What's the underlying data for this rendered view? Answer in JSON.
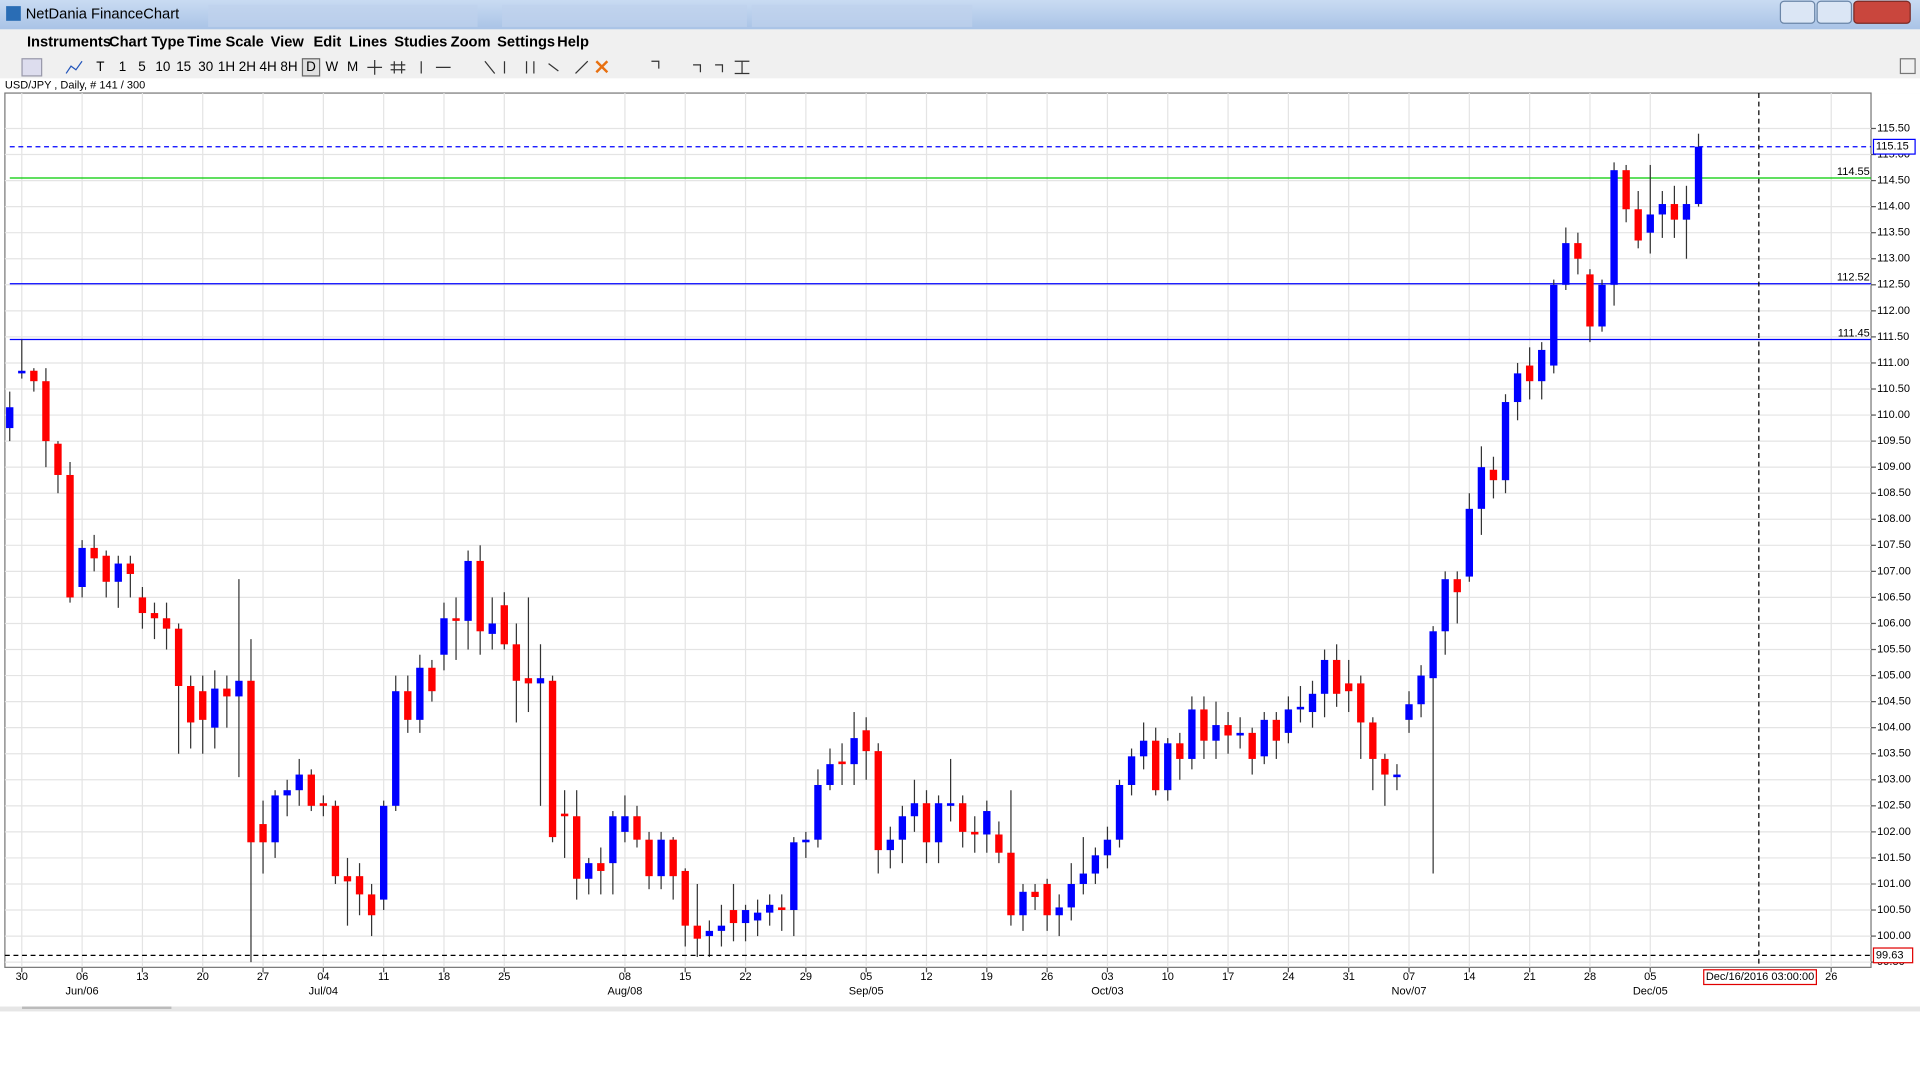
{
  "window": {
    "title": "NetDania FinanceChart"
  },
  "menu": [
    "Instruments",
    "Chart Type",
    "Time Scale",
    "View",
    "Edit",
    "Lines",
    "Studies",
    "Zoom",
    "Settings",
    "Help"
  ],
  "toolbar": {
    "timescales": [
      "T",
      "1",
      "5",
      "10",
      "15",
      "30",
      "1H",
      "2H",
      "4H",
      "8H",
      "D",
      "W",
      "M"
    ],
    "active": "D"
  },
  "chart_data": {
    "type": "candlestick",
    "title": "USD/JPY , Daily, # 141 / 300",
    "up_color": "#0000ff",
    "down_color": "#ff0000",
    "grid": true,
    "open": [
      109.75,
      110.8,
      110.85,
      110.65,
      109.45,
      108.85,
      106.7,
      107.45,
      107.3,
      106.8,
      107.15,
      106.5,
      106.2,
      106.1,
      105.9,
      104.8,
      104.7,
      104.0,
      104.75,
      104.6,
      104.9,
      102.15,
      101.8,
      102.7,
      102.8,
      103.1,
      102.55,
      102.5,
      101.15,
      101.15,
      100.8,
      100.7,
      102.5,
      104.7,
      104.15,
      105.15,
      105.4,
      106.1,
      106.05,
      107.2,
      105.8,
      106.35,
      105.6,
      104.95,
      104.85,
      104.9,
      102.35,
      102.3,
      101.1,
      101.4,
      101.4,
      102.0,
      102.3,
      101.85,
      101.15,
      101.85,
      101.25,
      100.2,
      100.0,
      100.1,
      100.5,
      100.25,
      100.3,
      100.45,
      100.55,
      100.5,
      101.8,
      101.85,
      102.9,
      103.35,
      103.3,
      103.95,
      103.55,
      101.65,
      101.85,
      102.3,
      102.55,
      101.8,
      102.5,
      102.55,
      102.0,
      101.95,
      101.95,
      101.6,
      100.4,
      100.85,
      101.0,
      100.4,
      100.55,
      101.0,
      101.2,
      101.55,
      101.85,
      102.9,
      103.45,
      103.75,
      102.8,
      103.7,
      103.4,
      104.35,
      103.75,
      104.05,
      103.85,
      103.9,
      103.45,
      104.15,
      103.9,
      104.35,
      104.3,
      104.65,
      105.3,
      104.85,
      104.85,
      104.1,
      103.4,
      103.05,
      104.15,
      104.45,
      104.95,
      105.85,
      106.85,
      106.9,
      108.2,
      108.95,
      108.75,
      110.25,
      110.95,
      110.65,
      110.95,
      112.5,
      113.3,
      112.7,
      111.7,
      112.5,
      114.7,
      113.95,
      113.5,
      113.85,
      114.05,
      113.75,
      114.05
    ],
    "high": [
      110.45,
      111.45,
      110.9,
      110.9,
      109.5,
      109.1,
      107.6,
      107.7,
      107.4,
      107.3,
      107.3,
      106.7,
      106.4,
      106.4,
      106.0,
      105.0,
      105.0,
      105.1,
      105.0,
      106.85,
      105.7,
      102.6,
      102.8,
      103.0,
      103.4,
      103.2,
      102.7,
      102.6,
      101.5,
      101.4,
      101.0,
      102.6,
      105.0,
      105.0,
      105.4,
      105.3,
      106.4,
      106.5,
      107.4,
      107.5,
      106.5,
      106.6,
      106.0,
      106.5,
      105.6,
      105.0,
      102.8,
      102.8,
      101.5,
      101.7,
      102.4,
      102.7,
      102.5,
      102.0,
      102.0,
      101.9,
      101.3,
      101.0,
      100.3,
      100.6,
      101.0,
      100.6,
      100.7,
      100.8,
      100.8,
      101.9,
      102.0,
      103.2,
      103.6,
      103.7,
      104.3,
      104.2,
      103.7,
      102.1,
      102.5,
      103.0,
      102.8,
      102.7,
      103.4,
      102.7,
      102.3,
      102.6,
      102.2,
      102.8,
      101.0,
      101.0,
      101.1,
      100.8,
      101.4,
      101.9,
      101.7,
      102.1,
      103.0,
      103.6,
      104.1,
      104.0,
      103.8,
      103.9,
      104.6,
      104.6,
      104.5,
      104.3,
      104.2,
      104.0,
      104.3,
      104.3,
      104.6,
      104.8,
      104.9,
      105.5,
      105.6,
      105.3,
      105.0,
      104.2,
      103.5,
      103.3,
      104.7,
      105.2,
      105.95,
      107.0,
      107.0,
      108.5,
      109.4,
      109.2,
      110.4,
      111.0,
      111.3,
      111.4,
      112.6,
      113.6,
      113.5,
      112.8,
      112.6,
      114.85,
      114.8,
      114.3,
      114.8,
      114.3,
      114.4,
      114.4,
      115.4
    ],
    "low": [
      109.5,
      110.7,
      110.45,
      109.0,
      108.5,
      106.4,
      106.5,
      107.0,
      106.5,
      106.3,
      106.5,
      105.9,
      105.7,
      105.5,
      103.5,
      103.6,
      103.5,
      103.6,
      104.0,
      103.05,
      99.5,
      101.2,
      101.5,
      102.3,
      102.5,
      102.4,
      102.3,
      101.0,
      100.2,
      100.4,
      100.0,
      100.5,
      102.4,
      103.9,
      103.9,
      104.5,
      105.1,
      105.3,
      105.5,
      105.4,
      105.5,
      105.5,
      104.1,
      104.3,
      102.5,
      101.8,
      101.5,
      100.7,
      100.8,
      100.8,
      100.8,
      101.8,
      101.7,
      100.9,
      100.9,
      100.7,
      99.8,
      99.6,
      99.6,
      99.8,
      99.9,
      99.9,
      100.0,
      100.2,
      100.1,
      100.0,
      101.5,
      101.7,
      102.8,
      102.9,
      102.9,
      103.0,
      101.2,
      101.3,
      101.4,
      102.0,
      101.4,
      101.4,
      102.2,
      101.7,
      101.6,
      101.6,
      101.4,
      100.2,
      100.1,
      100.5,
      100.1,
      100.0,
      100.3,
      100.8,
      101.0,
      101.3,
      101.7,
      102.7,
      103.2,
      102.7,
      102.6,
      103.0,
      103.2,
      103.4,
      103.4,
      103.5,
      103.6,
      103.1,
      103.3,
      103.4,
      103.7,
      104.1,
      104.0,
      104.2,
      104.4,
      104.3,
      103.4,
      102.8,
      102.5,
      102.8,
      103.9,
      104.2,
      101.2,
      105.4,
      106.0,
      106.8,
      107.7,
      108.4,
      108.5,
      109.9,
      110.3,
      110.3,
      110.8,
      112.4,
      112.7,
      111.4,
      111.6,
      112.1,
      113.7,
      113.2,
      113.1,
      113.4,
      113.4,
      113.0,
      114.0
    ],
    "close": [
      110.15,
      110.85,
      110.65,
      109.5,
      108.85,
      106.5,
      107.45,
      107.25,
      106.8,
      107.15,
      106.95,
      106.2,
      106.1,
      105.9,
      104.8,
      104.1,
      104.15,
      104.75,
      104.6,
      104.9,
      101.8,
      101.8,
      102.7,
      102.8,
      103.1,
      102.5,
      102.5,
      101.15,
      101.05,
      100.8,
      100.4,
      102.5,
      104.7,
      104.15,
      105.15,
      104.7,
      106.1,
      106.05,
      107.2,
      105.85,
      106.0,
      105.6,
      104.9,
      104.85,
      104.95,
      101.9,
      102.3,
      101.1,
      101.4,
      101.25,
      102.3,
      102.3,
      101.85,
      101.15,
      101.85,
      101.15,
      100.2,
      99.95,
      100.1,
      100.2,
      100.25,
      100.5,
      100.45,
      100.6,
      100.5,
      101.8,
      101.85,
      102.9,
      103.3,
      103.3,
      103.8,
      103.55,
      101.65,
      101.85,
      102.3,
      102.55,
      101.8,
      102.55,
      102.55,
      102.0,
      101.95,
      102.4,
      101.6,
      100.4,
      100.85,
      100.75,
      100.4,
      100.55,
      101.0,
      101.2,
      101.55,
      101.85,
      102.9,
      103.45,
      103.75,
      102.8,
      103.7,
      103.4,
      104.35,
      103.75,
      104.05,
      103.85,
      103.9,
      103.4,
      104.15,
      103.75,
      104.35,
      104.4,
      104.65,
      105.3,
      104.65,
      104.7,
      104.1,
      103.4,
      103.1,
      103.1,
      104.45,
      105.0,
      105.85,
      106.85,
      106.6,
      108.2,
      109.0,
      108.75,
      110.25,
      110.8,
      110.65,
      111.25,
      112.5,
      113.3,
      113.0,
      111.7,
      112.5,
      114.7,
      113.95,
      113.35,
      113.85,
      114.05,
      113.75,
      114.05,
      115.15
    ],
    "xlim": [
      -0.4,
      154.3
    ],
    "xticks": [
      {
        "value": 1,
        "label": "30"
      },
      {
        "value": 6,
        "label": "06"
      },
      {
        "value": 11,
        "label": "13"
      },
      {
        "value": 16,
        "label": "20"
      },
      {
        "value": 21,
        "label": "27"
      },
      {
        "value": 26,
        "label": "04"
      },
      {
        "value": 31,
        "label": "11"
      },
      {
        "value": 36,
        "label": "18"
      },
      {
        "value": 41,
        "label": "25"
      },
      {
        "value": 51,
        "label": "08"
      },
      {
        "value": 56,
        "label": "15"
      },
      {
        "value": 61,
        "label": "22"
      },
      {
        "value": 66,
        "label": "29"
      },
      {
        "value": 71,
        "label": "05"
      },
      {
        "value": 76,
        "label": "12"
      },
      {
        "value": 81,
        "label": "19"
      },
      {
        "value": 86,
        "label": "26"
      },
      {
        "value": 91,
        "label": "03"
      },
      {
        "value": 96,
        "label": "10"
      },
      {
        "value": 101,
        "label": "17"
      },
      {
        "value": 106,
        "label": "24"
      },
      {
        "value": 111,
        "label": "31"
      },
      {
        "value": 116,
        "label": "07"
      },
      {
        "value": 121,
        "label": "14"
      },
      {
        "value": 126,
        "label": "21"
      },
      {
        "value": 131,
        "label": "28"
      },
      {
        "value": 136,
        "label": "05"
      },
      {
        "value": 151,
        "label": "26"
      }
    ],
    "xticks_month": [
      {
        "value": 6,
        "label": "Jun/06"
      },
      {
        "value": 26,
        "label": "Jul/04"
      },
      {
        "value": 51,
        "label": "Aug/08"
      },
      {
        "value": 71,
        "label": "Sep/05"
      },
      {
        "value": 91,
        "label": "Oct/03"
      },
      {
        "value": 116,
        "label": "Nov/07"
      },
      {
        "value": 136,
        "label": "Dec/05"
      }
    ],
    "ylim": [
      99.4,
      116.18
    ],
    "yticks": [
      {
        "value": 99.5,
        "label": "99.50"
      },
      {
        "value": 100,
        "label": "100.00"
      },
      {
        "value": 100.5,
        "label": "100.50"
      },
      {
        "value": 101,
        "label": "101.00"
      },
      {
        "value": 101.5,
        "label": "101.50"
      },
      {
        "value": 102,
        "label": "102.00"
      },
      {
        "value": 102.5,
        "label": "102.50"
      },
      {
        "value": 103,
        "label": "103.00"
      },
      {
        "value": 103.5,
        "label": "103.50"
      },
      {
        "value": 104,
        "label": "104.00"
      },
      {
        "value": 104.5,
        "label": "104.50"
      },
      {
        "value": 105,
        "label": "105.00"
      },
      {
        "value": 105.5,
        "label": "105.50"
      },
      {
        "value": 106,
        "label": "106.00"
      },
      {
        "value": 106.5,
        "label": "106.50"
      },
      {
        "value": 107,
        "label": "107.00"
      },
      {
        "value": 107.5,
        "label": "107.50"
      },
      {
        "value": 108,
        "label": "108.00"
      },
      {
        "value": 108.5,
        "label": "108.50"
      },
      {
        "value": 109,
        "label": "109.00"
      },
      {
        "value": 109.5,
        "label": "109.50"
      },
      {
        "value": 110,
        "label": "110.00"
      },
      {
        "value": 110.5,
        "label": "110.50"
      },
      {
        "value": 111,
        "label": "111.00"
      },
      {
        "value": 111.5,
        "label": "111.50"
      },
      {
        "value": 112,
        "label": "112.00"
      },
      {
        "value": 112.5,
        "label": "112.50"
      },
      {
        "value": 113,
        "label": "113.00"
      },
      {
        "value": 113.5,
        "label": "113.50"
      },
      {
        "value": 114,
        "label": "114.00"
      },
      {
        "value": 114.5,
        "label": "114.50"
      },
      {
        "value": 115,
        "label": "115.00"
      },
      {
        "value": 115.5,
        "label": "115.50"
      }
    ],
    "levels": [
      {
        "value": 115.15,
        "label": "115.15",
        "color": "#0000ff",
        "style": "dashed",
        "boxed": true
      },
      {
        "value": 114.55,
        "label": "114.55",
        "color": "#00cc00",
        "style": "solid"
      },
      {
        "value": 112.52,
        "label": "112.52",
        "color": "#0000ff",
        "style": "solid"
      },
      {
        "value": 111.45,
        "label": "111.45",
        "color": "#0000ff",
        "style": "solid"
      }
    ],
    "cursor": {
      "x": 145,
      "x_label": "Dec/16/2016 03:00:00",
      "y": 99.63,
      "y_label": "99.63"
    }
  }
}
